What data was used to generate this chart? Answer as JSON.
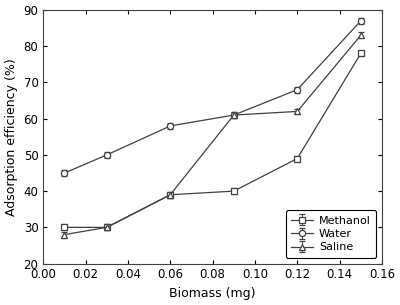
{
  "x": [
    0.01,
    0.03,
    0.06,
    0.09,
    0.12,
    0.15
  ],
  "methanol_y": [
    30,
    30,
    39,
    40,
    49,
    78
  ],
  "water_y": [
    45,
    50,
    58,
    61,
    68,
    87
  ],
  "saline_y": [
    28,
    30,
    39,
    61,
    62,
    83
  ],
  "xlabel": "Biomass (mg)",
  "ylabel": "Adsorption efficiency (%)",
  "ylim": [
    20,
    90
  ],
  "xlim": [
    0.0,
    0.16
  ],
  "yticks": [
    20,
    30,
    40,
    50,
    60,
    70,
    80,
    90
  ],
  "xticks": [
    0.0,
    0.02,
    0.04,
    0.06,
    0.08,
    0.1,
    0.12,
    0.14,
    0.16
  ],
  "legend_labels": [
    "Methanol",
    "Water",
    "Saline"
  ],
  "line_color": "#404040",
  "background_color": "#ffffff",
  "font_size": 9,
  "label_font_size": 9,
  "tick_font_size": 8.5
}
